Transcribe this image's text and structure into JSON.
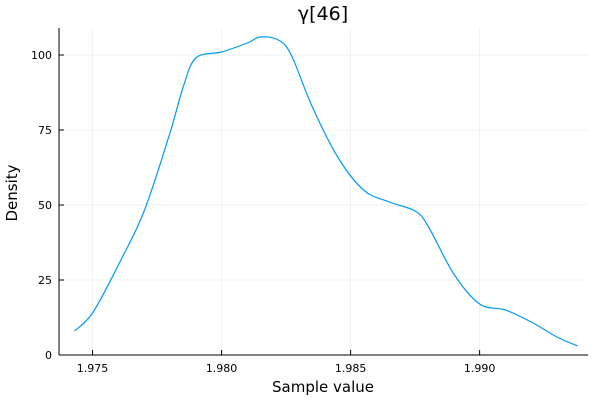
{
  "chart_data": {
    "type": "line",
    "title": "γ[46]",
    "xlabel": "Sample value",
    "ylabel": "Density",
    "xlim": [
      1.9737,
      1.9942
    ],
    "ylim": [
      0,
      109
    ],
    "xticks": [
      1.975,
      1.98,
      1.985,
      1.99
    ],
    "xtick_labels": [
      "1.975",
      "1.980",
      "1.985",
      "1.990"
    ],
    "yticks": [
      0,
      25,
      50,
      75,
      100
    ],
    "ytick_labels": [
      "0",
      "25",
      "50",
      "75",
      "100"
    ],
    "grid": true,
    "legend": "none",
    "series_color": "#009AF9",
    "series": [
      {
        "x": [
          1.9743,
          1.975,
          1.976,
          1.977,
          1.978,
          1.9785,
          1.979,
          1.98,
          1.981,
          1.9815,
          1.9822,
          1.9827,
          1.9835,
          1.9845,
          1.9855,
          1.9865,
          1.9875,
          1.988,
          1.989,
          1.99,
          1.991,
          1.992,
          1.993,
          1.9938
        ],
        "y": [
          8,
          14,
          30,
          48,
          74,
          89,
          99,
          101,
          104,
          106,
          105,
          100,
          83,
          66,
          55,
          51,
          48,
          43,
          27,
          17,
          15,
          11,
          6,
          3
        ]
      }
    ]
  }
}
